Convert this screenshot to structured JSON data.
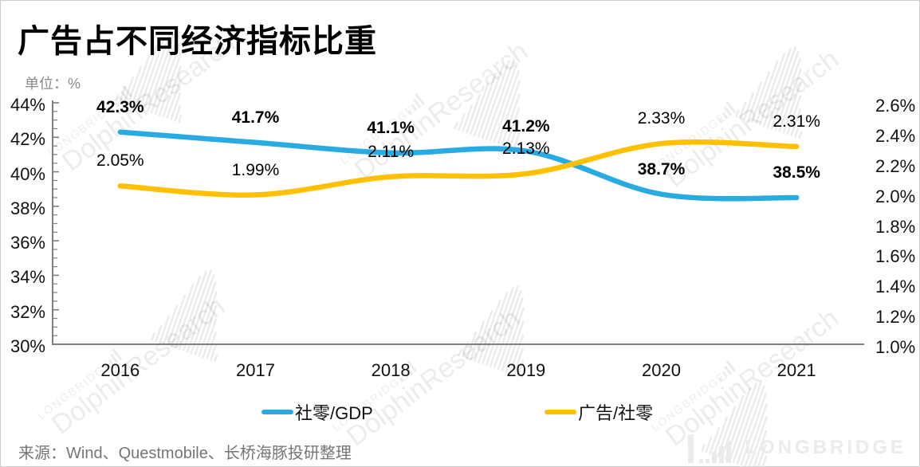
{
  "header": {
    "title": "广告占不同经济指标比重",
    "unit_label": "单位：%"
  },
  "watermark": {
    "brand": "LONGBRIDGE",
    "name": "DolphinResearch",
    "color": "#000000",
    "opacity": 0.07
  },
  "footer": {
    "source": "来源：Wind、Questmobile、长桥海豚投研整理",
    "logo_text": "LONGBRIDGE"
  },
  "chart_data": {
    "type": "line",
    "smooth": true,
    "grid": false,
    "categories": [
      "2016",
      "2017",
      "2018",
      "2019",
      "2020",
      "2021"
    ],
    "series": [
      {
        "name": "社零/GDP",
        "axis": "left",
        "color": "#29ABE2",
        "values": [
          42.3,
          41.7,
          41.1,
          41.2,
          38.7,
          38.5
        ],
        "labels": [
          "42.3%",
          "41.7%",
          "41.1%",
          "41.2%",
          "38.7%",
          "38.5%"
        ],
        "label_bold": true
      },
      {
        "name": "广告/社零",
        "axis": "right",
        "color": "#FFC000",
        "values": [
          2.05,
          1.99,
          2.11,
          2.13,
          2.33,
          2.31
        ],
        "labels": [
          "2.05%",
          "1.99%",
          "2.11%",
          "2.13%",
          "2.33%",
          "2.31%"
        ],
        "label_bold": false
      }
    ],
    "left_axis": {
      "min": 30,
      "max": 44,
      "major_step": 2,
      "minor_step": 0.5,
      "ticks": [
        "44%",
        "42%",
        "40%",
        "38%",
        "36%",
        "34%",
        "32%",
        "30%"
      ]
    },
    "right_axis": {
      "min": 1.0,
      "max": 2.6,
      "major_step": 0.2,
      "ticks": [
        "2.6%",
        "2.4%",
        "2.2%",
        "2.0%",
        "1.8%",
        "1.6%",
        "1.4%",
        "1.2%",
        "1.0%"
      ]
    },
    "legend": [
      {
        "label": "社零/GDP",
        "color": "#29ABE2"
      },
      {
        "label": "广告/社零",
        "color": "#FFC000"
      }
    ],
    "axis_color": "#7f7f7f"
  }
}
